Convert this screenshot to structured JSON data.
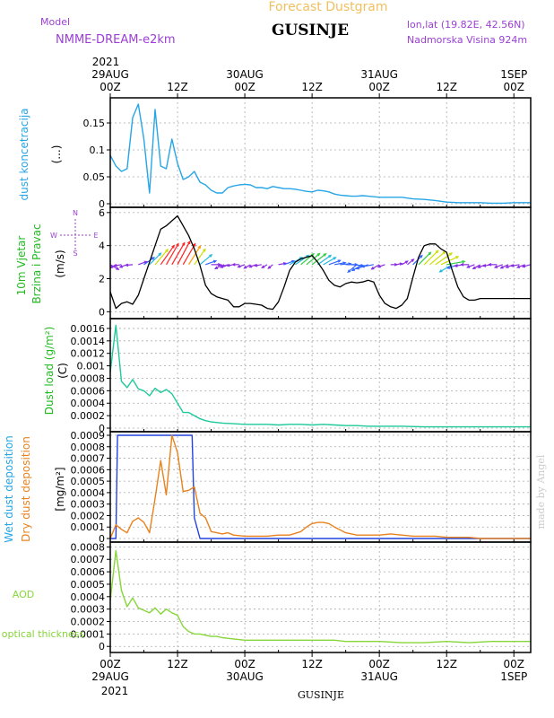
{
  "header": {
    "title": "Forecast Dustgram",
    "model_label": "Model",
    "model_name": "NMME-DREAM-e2km",
    "location": "GUSINJE",
    "coords": "lon,lat (19.82E, 42.56N)",
    "elevation": "Nadmorska Visina 924m"
  },
  "watermark": "made by Angel",
  "footer_location": "GUSINJE",
  "colors": {
    "concentration": "#27a6e6",
    "wind_speed": "#000000",
    "dust_load": "#1fc99a",
    "wet_dep": "#2244dd",
    "dry_dep": "#e8821e",
    "aod": "#86d63a",
    "grid": "#aaaaaa",
    "label_blue": "#27a6e6",
    "label_green": "#22bb22",
    "label_purple": "#9b3fd4",
    "label_orange": "#e8821e",
    "label_yellow": "#f0c060"
  },
  "time_axis": {
    "top_year": "2021",
    "bottom_year": "2021",
    "ticks": [
      {
        "h": 0,
        "top": [
          "29AUG",
          "00Z"
        ],
        "bottom": [
          "00Z",
          "29AUG"
        ]
      },
      {
        "h": 12,
        "top": [
          "",
          "12Z"
        ],
        "bottom": [
          "12Z",
          ""
        ]
      },
      {
        "h": 24,
        "top": [
          "30AUG",
          "00Z"
        ],
        "bottom": [
          "00Z",
          "30AUG"
        ]
      },
      {
        "h": 36,
        "top": [
          "",
          "12Z"
        ],
        "bottom": [
          "12Z",
          ""
        ]
      },
      {
        "h": 48,
        "top": [
          "31AUG",
          "00Z"
        ],
        "bottom": [
          "00Z",
          "31AUG"
        ]
      },
      {
        "h": 60,
        "top": [
          "",
          "12Z"
        ],
        "bottom": [
          "12Z",
          ""
        ]
      },
      {
        "h": 72,
        "top": [
          "1SEP",
          "00Z"
        ],
        "bottom": [
          "00Z",
          "1SEP"
        ]
      }
    ]
  },
  "panels": [
    {
      "key": "conc",
      "label": "dust koncetracija",
      "unit": "(...)"
    },
    {
      "key": "wind",
      "label1": "10m Vjetar",
      "label2": "Brzina i Pravac",
      "unit": "(m/s)",
      "compass": {
        "n": "N",
        "s": "S",
        "w": "W",
        "e": "E"
      }
    },
    {
      "key": "load",
      "label": "Dust load (g/m²)",
      "unit": "(C)"
    },
    {
      "key": "dep",
      "label_wet": "Wet dust deposition",
      "label_dry": "Dry dust deposition",
      "unit": "[mg/m²]"
    },
    {
      "key": "aod",
      "label1": "AOD",
      "label2": "optical thickness"
    }
  ],
  "chart_data": [
    {
      "type": "line",
      "name": "dust koncetracija",
      "ylabel": "dust koncetracija (...)",
      "ylim": [
        0,
        0.19
      ],
      "yticks": [
        0,
        0.05,
        0.1,
        0.15
      ],
      "ytick_labels": [
        "0",
        "0.05",
        "0.1",
        "0.15"
      ],
      "grid": true,
      "x": [
        0,
        1,
        2,
        3,
        4,
        5,
        6,
        7,
        8,
        9,
        10,
        11,
        12,
        13,
        14,
        15,
        16,
        17,
        18,
        19,
        20,
        21,
        22,
        23,
        24,
        25,
        26,
        27,
        28,
        29,
        30,
        31,
        32,
        33,
        34,
        35,
        36,
        37,
        38,
        39,
        40,
        41,
        42,
        43,
        44,
        45,
        46,
        47,
        48,
        50,
        52,
        54,
        56,
        58,
        60,
        62,
        64,
        66,
        68,
        70,
        72,
        74,
        75
      ],
      "values": [
        0.09,
        0.07,
        0.06,
        0.065,
        0.16,
        0.185,
        0.12,
        0.02,
        0.175,
        0.07,
        0.065,
        0.12,
        0.075,
        0.045,
        0.05,
        0.06,
        0.04,
        0.035,
        0.025,
        0.02,
        0.02,
        0.03,
        0.033,
        0.035,
        0.036,
        0.035,
        0.03,
        0.03,
        0.028,
        0.032,
        0.03,
        0.028,
        0.028,
        0.027,
        0.025,
        0.023,
        0.022,
        0.025,
        0.024,
        0.022,
        0.018,
        0.016,
        0.015,
        0.014,
        0.014,
        0.015,
        0.014,
        0.013,
        0.012,
        0.012,
        0.012,
        0.009,
        0.008,
        0.006,
        0.003,
        0.002,
        0.002,
        0.002,
        0.001,
        0.001,
        0.002,
        0.002,
        0.002
      ]
    },
    {
      "type": "line",
      "name": "10m Vjetar Brzina i Pravac",
      "ylabel": "(m/s)",
      "ylim": [
        -0.2,
        6.1
      ],
      "yticks": [
        0,
        2,
        4,
        6
      ],
      "ytick_labels": [
        "0",
        "2",
        "4",
        "6"
      ],
      "grid": true,
      "x": [
        0,
        1,
        2,
        3,
        4,
        5,
        6,
        7,
        8,
        9,
        10,
        11,
        12,
        13,
        14,
        15,
        16,
        17,
        18,
        19,
        20,
        21,
        22,
        23,
        24,
        25,
        26,
        27,
        28,
        29,
        30,
        31,
        32,
        33,
        34,
        35,
        36,
        37,
        38,
        39,
        40,
        41,
        42,
        43,
        44,
        45,
        46,
        47,
        48,
        49,
        50,
        51,
        52,
        53,
        54,
        55,
        56,
        57,
        58,
        59,
        60,
        61,
        62,
        63,
        64,
        65,
        66,
        67,
        68,
        69,
        70,
        71,
        72,
        73,
        74,
        75
      ],
      "values": [
        1.2,
        0.2,
        0.5,
        0.6,
        0.45,
        1.0,
        2.0,
        3.0,
        4.0,
        5.0,
        5.2,
        5.5,
        5.8,
        5.2,
        4.6,
        3.8,
        2.8,
        1.6,
        1.1,
        0.9,
        0.8,
        0.7,
        0.3,
        0.3,
        0.5,
        0.5,
        0.45,
        0.4,
        0.2,
        0.15,
        0.6,
        1.5,
        2.5,
        3.0,
        3.2,
        3.3,
        3.4,
        3.0,
        2.5,
        1.9,
        1.6,
        1.5,
        1.7,
        1.8,
        1.75,
        1.8,
        1.9,
        1.8,
        1.0,
        0.5,
        0.3,
        0.2,
        0.4,
        0.8,
        2.1,
        3.3,
        4.0,
        4.1,
        4.1,
        3.8,
        3.6,
        2.5,
        1.5,
        0.9,
        0.7,
        0.7,
        0.8,
        0.8,
        0.8,
        0.8,
        0.8,
        0.8,
        0.8,
        0.8,
        0.8,
        0.8
      ],
      "wind_barbs": {
        "baseline": 2.85,
        "x": [
          0,
          1,
          2,
          3,
          4,
          5,
          6,
          7,
          8,
          9,
          10,
          11,
          12,
          13,
          14,
          15,
          16,
          17,
          18,
          19,
          20,
          21,
          22,
          23,
          24,
          25,
          26,
          27,
          28,
          29,
          30,
          31,
          32,
          33,
          34,
          35,
          36,
          37,
          38,
          39,
          40,
          41,
          42,
          43,
          44,
          45,
          46,
          47,
          48,
          49,
          50,
          51,
          52,
          53,
          54,
          55,
          56,
          57,
          58,
          59,
          60,
          61,
          62,
          63,
          64,
          65,
          66,
          67,
          68,
          69,
          70,
          71,
          72,
          73,
          74,
          75
        ],
        "dir_deg": [
          120,
          240,
          260,
          250,
          265,
          70,
          55,
          45,
          40,
          35,
          30,
          30,
          28,
          30,
          32,
          35,
          50,
          70,
          90,
          100,
          240,
          250,
          260,
          270,
          250,
          240,
          250,
          260,
          240,
          230,
          80,
          70,
          60,
          55,
          50,
          50,
          52,
          55,
          60,
          70,
          80,
          85,
          90,
          95,
          230,
          240,
          250,
          260,
          240,
          250,
          90,
          80,
          60,
          50,
          45,
          45,
          45,
          50,
          55,
          65,
          80,
          240,
          250,
          260,
          270,
          250,
          240,
          250,
          260,
          270,
          250,
          245,
          250,
          260,
          250,
          255
        ],
        "speed": [
          1.2,
          0.2,
          0.5,
          0.6,
          0.45,
          1.0,
          2.0,
          3.0,
          4.0,
          5.0,
          5.2,
          5.5,
          5.8,
          5.2,
          4.6,
          3.8,
          2.8,
          1.6,
          1.1,
          0.9,
          0.8,
          0.7,
          0.3,
          0.3,
          0.5,
          0.5,
          0.45,
          0.4,
          0.2,
          0.15,
          0.6,
          1.5,
          2.5,
          3.0,
          3.2,
          3.3,
          3.4,
          3.0,
          2.5,
          1.9,
          1.6,
          1.5,
          1.7,
          1.8,
          1.75,
          1.8,
          1.9,
          1.8,
          1.0,
          0.5,
          0.3,
          0.2,
          0.4,
          0.8,
          2.1,
          3.3,
          4.0,
          4.1,
          4.1,
          3.8,
          3.6,
          2.5,
          1.5,
          0.9,
          0.7,
          0.7,
          0.8,
          0.8,
          0.8,
          0.8,
          0.8,
          0.8,
          0.8,
          0.8,
          0.8,
          0.8
        ]
      }
    },
    {
      "type": "line",
      "name": "Dust load",
      "ylabel": "Dust load (g/m²) (C)",
      "ylim": [
        0,
        0.0017
      ],
      "yticks": [
        0,
        0.0002,
        0.0004,
        0.0006,
        0.0008,
        0.001,
        0.0012,
        0.0014,
        0.0016
      ],
      "ytick_labels": [
        "0",
        "0.0002",
        "0.0004",
        "0.0006",
        "0.0008",
        "0.001",
        "0.0012",
        "0.0014",
        "0.0016"
      ],
      "grid": true,
      "x": [
        0,
        1,
        2,
        3,
        4,
        5,
        6,
        7,
        8,
        9,
        10,
        11,
        12,
        13,
        14,
        15,
        16,
        17,
        18,
        20,
        22,
        24,
        26,
        28,
        30,
        32,
        34,
        36,
        38,
        40,
        42,
        44,
        46,
        48,
        52,
        56,
        60,
        64,
        68,
        72,
        75
      ],
      "values": [
        0.0009,
        0.00165,
        0.00075,
        0.00065,
        0.00078,
        0.00063,
        0.0006,
        0.00052,
        0.00064,
        0.00057,
        0.00062,
        0.00055,
        0.0004,
        0.00025,
        0.00025,
        0.0002,
        0.00015,
        0.00012,
        0.0001,
        8e-05,
        7e-05,
        6e-05,
        6e-05,
        6e-05,
        5e-05,
        6e-05,
        6e-05,
        5e-05,
        6e-05,
        5e-05,
        4e-05,
        4e-05,
        3e-05,
        3e-05,
        3e-05,
        2e-05,
        2e-05,
        2e-05,
        2e-05,
        2e-05,
        2e-05
      ]
    },
    {
      "type": "line",
      "name": "Wet/Dry dust deposition",
      "ylabel": "[mg/m²]",
      "ylim": [
        0,
        0.0009
      ],
      "yticks": [
        0,
        0.0001,
        0.0002,
        0.0003,
        0.0004,
        0.0005,
        0.0006,
        0.0007,
        0.0008,
        0.0009
      ],
      "ytick_labels": [
        "0",
        "0.0001",
        "0.0002",
        "0.0003",
        "0.0004",
        "0.0005",
        "0.0006",
        "0.0007",
        "0.0008",
        "0.0009"
      ],
      "grid": true,
      "series": [
        {
          "name": "Wet dust deposition",
          "x": [
            0,
            1,
            1.3,
            14.6,
            15,
            16,
            75
          ],
          "values": [
            0,
            0,
            0.0009,
            0.0009,
            0.00018,
            0,
            0
          ]
        },
        {
          "name": "Dry dust deposition",
          "x": [
            0,
            1,
            2,
            3,
            4,
            5,
            6,
            7,
            8,
            9,
            10,
            11,
            12,
            13,
            14,
            15,
            16,
            17,
            18,
            19,
            20,
            21,
            22,
            24,
            26,
            28,
            30,
            32,
            34,
            35,
            36,
            37,
            38,
            39,
            40,
            42,
            44,
            46,
            48,
            50,
            52,
            54,
            56,
            58,
            60,
            62,
            64,
            66,
            68,
            70,
            72,
            74,
            75
          ],
          "values": [
            0,
            0.00012,
            8e-05,
            5e-05,
            0.00015,
            0.00018,
            0.00014,
            5e-05,
            0.00035,
            0.00068,
            0.00038,
            0.0009,
            0.00075,
            0.00041,
            0.00042,
            0.00045,
            0.00022,
            0.00018,
            6e-05,
            5e-05,
            4e-05,
            5e-05,
            3e-05,
            2e-05,
            2e-05,
            2e-05,
            3e-05,
            3e-05,
            6e-05,
            0.0001,
            0.00013,
            0.00014,
            0.00014,
            0.00013,
            0.0001,
            5e-05,
            3e-05,
            3e-05,
            3e-05,
            4e-05,
            3e-05,
            2e-05,
            2e-05,
            2e-05,
            1e-05,
            1e-05,
            1e-05,
            0,
            0,
            0,
            0,
            0,
            0
          ]
        }
      ]
    },
    {
      "type": "line",
      "name": "AOD",
      "ylabel": "AOD optical thickness",
      "ylim": [
        -2e-05,
        0.00081
      ],
      "yticks": [
        0,
        0.0001,
        0.0002,
        0.0003,
        0.0004,
        0.0005,
        0.0006,
        0.0007,
        0.0008
      ],
      "ytick_labels": [
        "0",
        "0.0001",
        "0.0002",
        "0.0003",
        "0.0004",
        "0.0005",
        "0.0006",
        "0.0007",
        "0.0008"
      ],
      "grid": true,
      "x": [
        0,
        1,
        2,
        3,
        4,
        5,
        6,
        7,
        8,
        9,
        10,
        11,
        12,
        13,
        14,
        15,
        16,
        17,
        18,
        19,
        20,
        22,
        24,
        26,
        28,
        30,
        32,
        34,
        36,
        38,
        40,
        42,
        44,
        46,
        48,
        52,
        56,
        60,
        64,
        68,
        72,
        75
      ],
      "values": [
        0.00037,
        0.00077,
        0.00045,
        0.00032,
        0.00039,
        0.00031,
        0.00029,
        0.00027,
        0.00031,
        0.00026,
        0.0003,
        0.00027,
        0.00025,
        0.00016,
        0.00012,
        0.0001,
        0.0001,
        9e-05,
        8e-05,
        8e-05,
        7e-05,
        6e-05,
        5e-05,
        5e-05,
        5e-05,
        5e-05,
        5e-05,
        5e-05,
        5e-05,
        5e-05,
        5e-05,
        4e-05,
        4e-05,
        4e-05,
        4e-05,
        3e-05,
        3e-05,
        4e-05,
        3e-05,
        4e-05,
        4e-05,
        4e-05
      ]
    }
  ]
}
